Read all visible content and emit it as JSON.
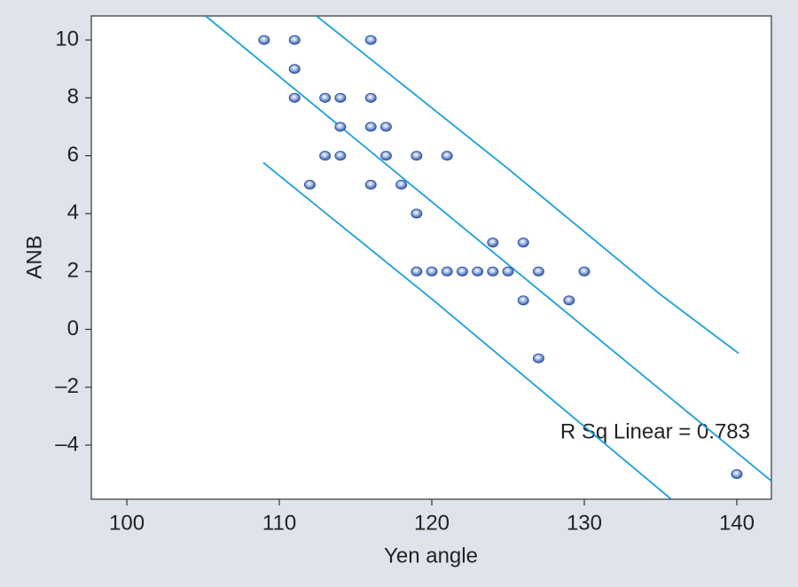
{
  "chart_data": {
    "type": "scatter",
    "x_label": "Yen angle",
    "y_label": "ANB",
    "annotation": "R Sq Linear = 0.783",
    "x": [
      109,
      111,
      116,
      111,
      111,
      113,
      114,
      116,
      114,
      116,
      117,
      113,
      114,
      117,
      119,
      121,
      112,
      116,
      118,
      119,
      124,
      126,
      119,
      120,
      121,
      122,
      123,
      124,
      125,
      127,
      130,
      126,
      129,
      127,
      140
    ],
    "values": [
      10,
      10,
      10,
      9,
      8,
      8,
      8,
      8,
      7,
      7,
      7,
      6,
      6,
      6,
      6,
      6,
      5,
      5,
      5,
      4,
      3,
      3,
      2,
      2,
      2,
      2,
      2,
      2,
      2,
      2,
      2,
      1,
      1,
      -1,
      -5
    ],
    "color": "#2f56a6",
    "fit_lines": [
      {
        "x": [
          105.17,
          142.27
        ],
        "values": [
          10.83,
          -5.24
        ],
        "color": "#1aa0da"
      },
      {
        "x": [
          112.44,
          125,
          135,
          140.12
        ],
        "values": [
          10.83,
          5.55,
          1.2,
          -0.83
        ],
        "color": "#1aa0da"
      },
      {
        "x": [
          108.95,
          120,
          135.7
        ],
        "values": [
          5.76,
          1.05,
          -5.87
        ],
        "color": "#1aa0da"
      }
    ],
    "xlim": [
      97.67,
      142.27
    ],
    "ylim": [
      -5.87,
      10.83
    ],
    "xticks": [
      100,
      110,
      120,
      130,
      140
    ],
    "yticks": [
      10,
      8,
      6,
      4,
      2,
      0,
      {
        "value": -2,
        "label": "–2"
      },
      {
        "value": -4,
        "label": "–4"
      }
    ]
  }
}
